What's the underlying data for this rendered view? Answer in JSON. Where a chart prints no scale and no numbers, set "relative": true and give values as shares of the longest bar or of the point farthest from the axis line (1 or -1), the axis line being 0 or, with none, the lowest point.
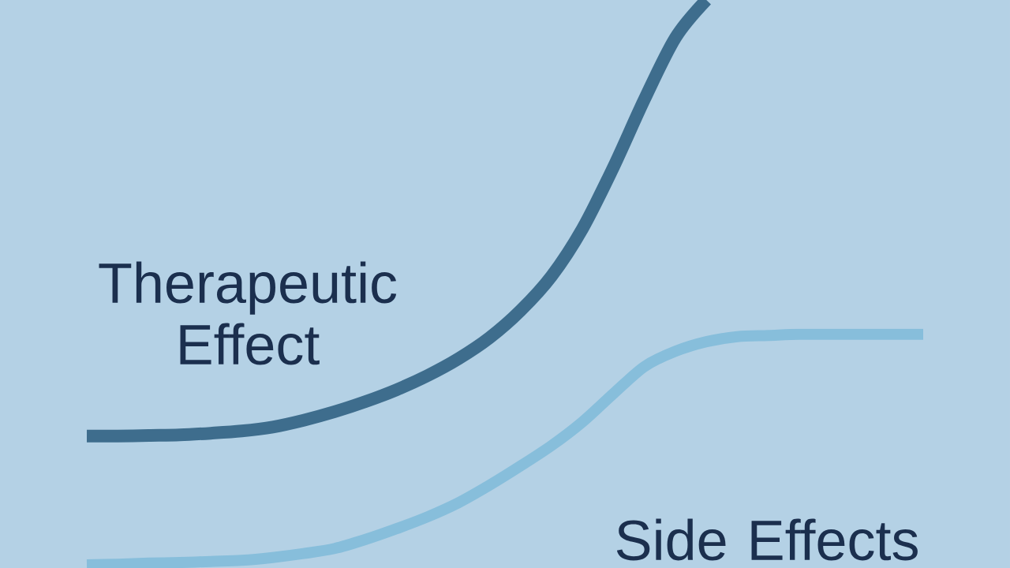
{
  "chart_data": {
    "type": "line",
    "relative": true,
    "categories": [
      null,
      null,
      null,
      null,
      null,
      null,
      null,
      null,
      null,
      null,
      null,
      null,
      null,
      null,
      null,
      null,
      null,
      null,
      null,
      null,
      null,
      null,
      null,
      null,
      null,
      null,
      null,
      null
    ],
    "series": [
      {
        "name": "Therapeutic Effect",
        "color": "#3e6d8d",
        "values": [
          0.228,
          0.228,
          0.229,
          0.23,
          0.233,
          0.237,
          0.244,
          0.256,
          0.271,
          0.289,
          0.31,
          0.335,
          0.365,
          0.402,
          0.45,
          0.511,
          0.595,
          0.704,
          0.824,
          0.933,
          1.0,
          null,
          null,
          null,
          null,
          null,
          null,
          null
        ]
      },
      {
        "name": "Side Effects",
        "color": "#87bedb",
        "values": [
          0,
          0.001,
          0.003,
          0.004,
          0.006,
          0.008,
          0.013,
          0.02,
          0.029,
          0.045,
          0.064,
          0.085,
          0.11,
          0.141,
          0.175,
          0.211,
          0.253,
          0.303,
          0.351,
          0.378,
          0.395,
          0.404,
          0.406,
          0.408,
          0.408,
          0.408,
          0.408,
          0.408
        ]
      }
    ]
  }
}
